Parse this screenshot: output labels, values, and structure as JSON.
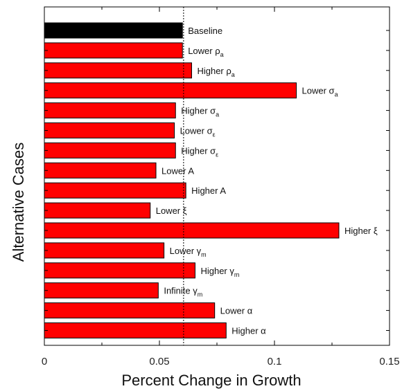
{
  "chart_data": {
    "type": "bar",
    "orientation": "horizontal",
    "xlabel": "Percent Change in Growth",
    "ylabel": "Alternative Cases",
    "xlim": [
      0,
      0.15
    ],
    "xticks": [
      0,
      0.05,
      0.1,
      0.15
    ],
    "xtick_labels": [
      "0",
      "0.05",
      "0.1",
      "0.15"
    ],
    "reference_line": {
      "x": 0.0605,
      "style": "dotted"
    },
    "grid": false,
    "bars": [
      {
        "label": "Baseline",
        "sub": "",
        "value": 0.06,
        "color": "#000000"
      },
      {
        "label": "Lower  ρ",
        "sub": "a",
        "value": 0.06,
        "color": "#ff0000"
      },
      {
        "label": "Higher ρ",
        "sub": "a",
        "value": 0.064,
        "color": "#ff0000"
      },
      {
        "label": "Lower σ",
        "sub": "a",
        "value": 0.1095,
        "color": "#ff0000"
      },
      {
        "label": "Higher σ",
        "sub": "a",
        "value": 0.057,
        "color": "#ff0000"
      },
      {
        "label": "Lower σ",
        "sub": "ε",
        "value": 0.0565,
        "color": "#ff0000"
      },
      {
        "label": "Higher σ",
        "sub": "ε",
        "value": 0.057,
        "color": "#ff0000"
      },
      {
        "label": "Lower A",
        "sub": "",
        "value": 0.0485,
        "color": "#ff0000"
      },
      {
        "label": "Higher A",
        "sub": "",
        "value": 0.0615,
        "color": "#ff0000"
      },
      {
        "label": "Lower ξ",
        "sub": "",
        "value": 0.046,
        "color": "#ff0000"
      },
      {
        "label": "Higher ξ",
        "sub": "",
        "value": 0.128,
        "color": "#ff0000"
      },
      {
        "label": "Lower γ",
        "sub": "m",
        "value": 0.052,
        "color": "#ff0000"
      },
      {
        "label": "Higher γ",
        "sub": "m",
        "value": 0.0655,
        "color": "#ff0000"
      },
      {
        "label": "Infinite γ",
        "sub": "m",
        "value": 0.0495,
        "color": "#ff0000"
      },
      {
        "label": "Lower α",
        "sub": "",
        "value": 0.074,
        "color": "#ff0000"
      },
      {
        "label": "Higher α",
        "sub": "",
        "value": 0.079,
        "color": "#ff0000"
      }
    ]
  }
}
